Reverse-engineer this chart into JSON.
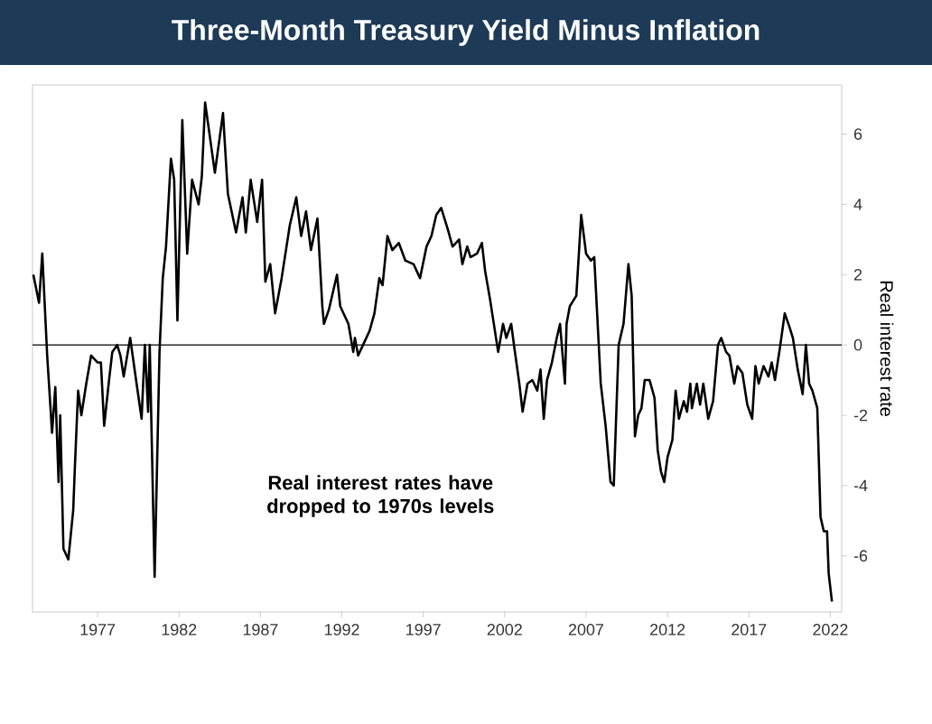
{
  "chart_data": {
    "type": "line",
    "title": "Three-Month Treasury Yield Minus Inflation",
    "ylabel": "Real interest rate",
    "x": [
      1973.05,
      1973.4,
      1973.6,
      1973.9,
      1974.2,
      1974.4,
      1974.6,
      1974.7,
      1974.9,
      1975.2,
      1975.5,
      1975.6,
      1975.8,
      1976.0,
      1976.3,
      1976.6,
      1977.0,
      1977.2,
      1977.4,
      1977.7,
      1977.9,
      1978.2,
      1978.4,
      1978.6,
      1979.0,
      1979.3,
      1979.7,
      1979.9,
      1980.1,
      1980.2,
      1980.5,
      1980.8,
      1981.0,
      1981.2,
      1981.5,
      1981.7,
      1981.9,
      1982.2,
      1982.5,
      1982.8,
      1983.2,
      1983.4,
      1983.6,
      1983.9,
      1984.2,
      1984.7,
      1985.0,
      1985.5,
      1985.9,
      1986.1,
      1986.4,
      1986.8,
      1987.1,
      1987.3,
      1987.6,
      1987.9,
      1988.3,
      1988.8,
      1989.2,
      1989.5,
      1989.8,
      1990.1,
      1990.5,
      1990.8,
      1990.9,
      1991.2,
      1991.7,
      1991.9,
      1992.4,
      1992.7,
      1992.8,
      1993.0,
      1993.3,
      1993.7,
      1994.0,
      1994.3,
      1994.5,
      1994.8,
      1995.1,
      1995.5,
      1995.9,
      1996.4,
      1996.8,
      1997.2,
      1997.5,
      1997.8,
      1998.1,
      1998.5,
      1998.8,
      1999.2,
      1999.4,
      1999.7,
      1999.9,
      2000.3,
      2000.6,
      2000.8,
      2001.1,
      2001.3,
      2001.6,
      2001.9,
      2002.1,
      2002.4,
      2002.6,
      2002.9,
      2003.1,
      2003.4,
      2003.7,
      2004.0,
      2004.2,
      2004.4,
      2004.6,
      2004.9,
      2005.2,
      2005.4,
      2005.7,
      2005.8,
      2006.0,
      2006.4,
      2006.7,
      2007.0,
      2007.3,
      2007.5,
      2007.9,
      2008.2,
      2008.5,
      2008.7,
      2009.0,
      2009.3,
      2009.6,
      2009.8,
      2010.0,
      2010.2,
      2010.4,
      2010.6,
      2010.9,
      2011.2,
      2011.4,
      2011.6,
      2011.8,
      2012.0,
      2012.3,
      2012.5,
      2012.7,
      2013.0,
      2013.2,
      2013.4,
      2013.5,
      2013.8,
      2014.0,
      2014.2,
      2014.5,
      2014.8,
      2015.1,
      2015.3,
      2015.6,
      2015.8,
      2016.1,
      2016.3,
      2016.6,
      2016.9,
      2017.2,
      2017.4,
      2017.6,
      2017.9,
      2018.2,
      2018.4,
      2018.6,
      2018.9,
      2019.2,
      2019.5,
      2019.7,
      2020.0,
      2020.3,
      2020.5,
      2020.7,
      2020.9,
      2021.2,
      2021.4,
      2021.6,
      2021.8,
      2021.9,
      2022.1
    ],
    "series": [
      {
        "color": "#000000",
        "values": [
          2.0,
          1.2,
          2.6,
          -0.3,
          -2.5,
          -1.2,
          -3.9,
          -2.0,
          -5.8,
          -6.1,
          -4.7,
          -3.5,
          -1.3,
          -2.0,
          -1.1,
          -0.3,
          -0.5,
          -0.5,
          -2.3,
          -1.0,
          -0.2,
          0.0,
          -0.3,
          -0.9,
          0.2,
          -0.8,
          -2.1,
          0.0,
          -1.9,
          0.0,
          -6.6,
          -0.2,
          1.9,
          2.8,
          5.3,
          4.7,
          0.7,
          6.4,
          2.6,
          4.7,
          4.0,
          4.8,
          6.9,
          5.9,
          4.9,
          6.6,
          4.3,
          3.2,
          4.2,
          3.2,
          4.7,
          3.5,
          4.7,
          1.8,
          2.3,
          0.9,
          1.9,
          3.4,
          4.2,
          3.1,
          3.8,
          2.7,
          3.6,
          1.1,
          0.6,
          1.0,
          2.0,
          1.1,
          0.6,
          -0.2,
          0.2,
          -0.3,
          0.0,
          0.4,
          0.9,
          1.9,
          1.7,
          3.1,
          2.7,
          2.9,
          2.4,
          2.3,
          1.9,
          2.8,
          3.1,
          3.7,
          3.9,
          3.3,
          2.8,
          3.0,
          2.3,
          2.8,
          2.5,
          2.6,
          2.9,
          2.1,
          1.3,
          0.7,
          -0.2,
          0.6,
          0.2,
          0.6,
          -0.1,
          -1.1,
          -1.9,
          -1.1,
          -1.0,
          -1.3,
          -0.7,
          -2.1,
          -1.0,
          -0.5,
          0.2,
          0.6,
          -1.1,
          0.6,
          1.1,
          1.4,
          3.7,
          2.6,
          2.4,
          2.5,
          -1.1,
          -2.3,
          -3.9,
          -4.0,
          0.0,
          0.6,
          2.3,
          1.4,
          -2.6,
          -2.0,
          -1.8,
          -1.0,
          -1.0,
          -1.5,
          -3.0,
          -3.6,
          -3.9,
          -3.2,
          -2.7,
          -1.3,
          -2.1,
          -1.6,
          -1.9,
          -1.1,
          -1.8,
          -1.1,
          -1.7,
          -1.1,
          -2.1,
          -1.6,
          0.0,
          0.2,
          -0.2,
          -0.3,
          -1.1,
          -0.6,
          -0.8,
          -1.7,
          -2.1,
          -0.6,
          -1.1,
          -0.6,
          -0.9,
          -0.5,
          -1.0,
          -0.1,
          0.9,
          0.5,
          0.2,
          -0.7,
          -1.4,
          0.0,
          -1.1,
          -1.3,
          -1.8,
          -4.9,
          -5.3,
          -5.3,
          -6.5,
          -7.3
        ]
      }
    ],
    "xlim": [
      1973.0,
      2022.7
    ],
    "ylim": [
      -7.6,
      7.4
    ],
    "xticks": [
      1977,
      1982,
      1987,
      1992,
      1997,
      2002,
      2007,
      2012,
      2017,
      2022
    ],
    "yticks": [
      -6,
      -4,
      -2,
      0,
      2,
      4,
      6
    ],
    "ref_lines": [
      {
        "axis": "y",
        "value": 0,
        "color": "#000000"
      }
    ],
    "annotations": [
      "Real interest rates have dropped to 1970s levels"
    ]
  }
}
